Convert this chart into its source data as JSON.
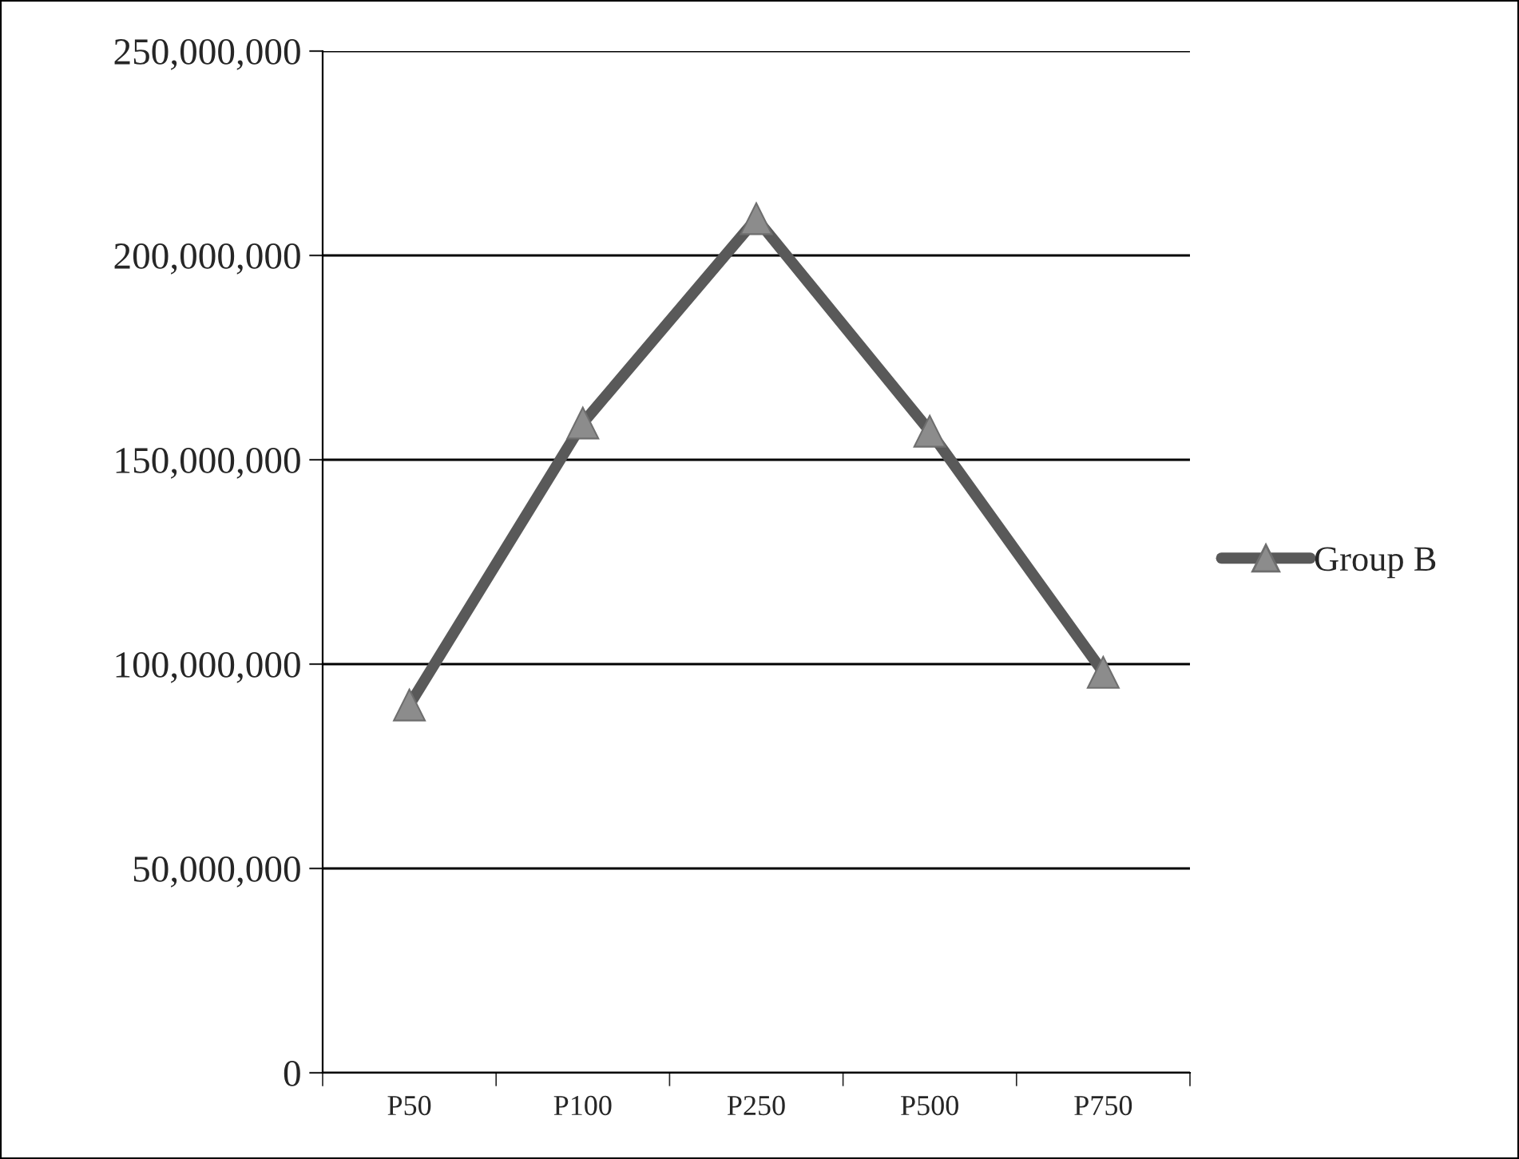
{
  "chart_data": {
    "type": "line",
    "categories": [
      "P50",
      "P100",
      "P250",
      "P500",
      "P750"
    ],
    "series": [
      {
        "name": "Group B",
        "color": "#595959",
        "values": [
          90000000,
          159000000,
          209000000,
          157000000,
          98000000
        ]
      }
    ],
    "ylim": [
      0,
      250000000
    ],
    "yticks": [
      {
        "value": 0,
        "label": "0"
      },
      {
        "value": 50000000,
        "label": "50,000,000"
      },
      {
        "value": 100000000,
        "label": "100,000,000"
      },
      {
        "value": 150000000,
        "label": "150,000,000"
      },
      {
        "value": 200000000,
        "label": "200,000,000"
      },
      {
        "value": 250000000,
        "label": "250,000,000"
      }
    ],
    "grid": "y",
    "legend": "right",
    "marker": "triangle",
    "line_style": "solid"
  }
}
